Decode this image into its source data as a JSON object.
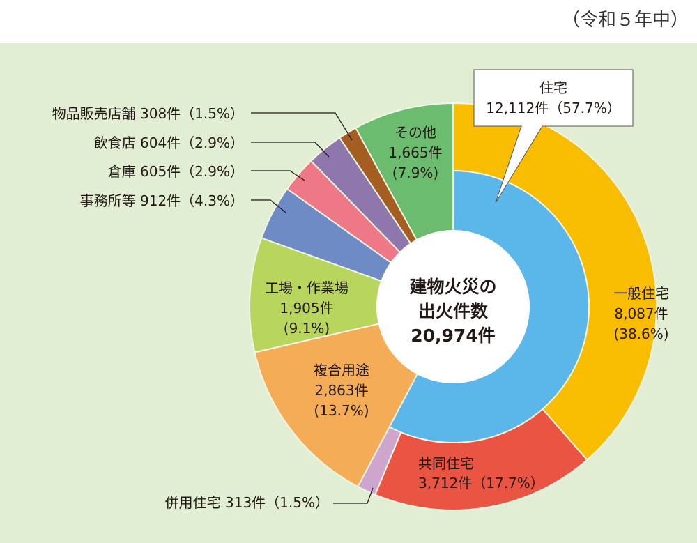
{
  "note": "（令和５年中）",
  "chart_data": {
    "type": "pie",
    "subtype": "nested-donut",
    "center_label": [
      "建物火災の",
      "出火件数",
      "20,974件"
    ],
    "total": 20974,
    "unit": "件",
    "outer": [
      {
        "name": "一般住宅",
        "value": 8087,
        "percent": 38.6,
        "color": "#F8BC00",
        "group": "住宅"
      },
      {
        "name": "共同住宅",
        "value": 3712,
        "percent": 17.7,
        "color": "#EA5543",
        "group": "住宅"
      },
      {
        "name": "併用住宅",
        "value": 313,
        "percent": 1.5,
        "color": "#CDA5CD",
        "group": "住宅"
      },
      {
        "name": "複合用途",
        "value": 2863,
        "percent": 13.7,
        "color": "#F5AC57"
      },
      {
        "name": "工場・作業場",
        "value": 1905,
        "percent": 9.1,
        "color": "#B8D55E"
      },
      {
        "name": "事務所等",
        "value": 912,
        "percent": 4.3,
        "color": "#6E8BC6"
      },
      {
        "name": "倉庫",
        "value": 605,
        "percent": 2.9,
        "color": "#EE7886"
      },
      {
        "name": "飲食店",
        "value": 604,
        "percent": 2.9,
        "color": "#8D77AC"
      },
      {
        "name": "物品販売店舗",
        "value": 308,
        "percent": 1.5,
        "color": "#A55E22"
      },
      {
        "name": "その他",
        "value": 1665,
        "percent": 7.9,
        "color": "#6BBC6E"
      }
    ],
    "inner": {
      "name": "住宅",
      "value": 12112,
      "percent": 57.7,
      "color": "#5BB6E9"
    },
    "labels": {
      "jutaku": [
        "住宅",
        "12,112件（57.7%）"
      ],
      "ippan": [
        "一般住宅",
        "8,087件",
        "(38.6%)"
      ],
      "kyodo": [
        "共同住宅",
        "3,712件（17.7%）"
      ],
      "heiyo": "併用住宅 313件（1.5%）",
      "fukugo": [
        "複合用途",
        "2,863件",
        "(13.7%)"
      ],
      "kojo": [
        "工場・作業場",
        "1,905件",
        "(9.1%)"
      ],
      "jimusho": "事務所等 912件（4.3%）",
      "soko": "倉庫 605件（2.9%）",
      "inshoku": "飲食店 604件（2.9%）",
      "buppan": "物品販売店舗 308件（1.5%）",
      "sonota": [
        "その他",
        "1,665件",
        "(7.9%)"
      ]
    }
  }
}
